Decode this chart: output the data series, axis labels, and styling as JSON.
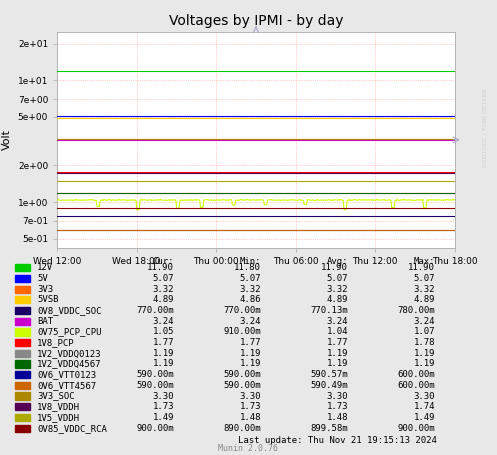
{
  "title": "Voltages by IPMI - by day",
  "ylabel": "Volt",
  "background_color": "#e8e8e8",
  "plot_bg_color": "#ffffff",
  "grid_color": "#ff9999",
  "watermark": "RRDTOOL / TOBI OETKER",
  "munin_version": "Munin 2.0.76",
  "last_update": "Last update: Thu Nov 21 19:15:13 2024",
  "xticklabels": [
    "Wed 12:00",
    "Wed 18:00",
    "Thu 00:00",
    "Thu 06:00",
    "Thu 12:00",
    "Thu 18:00"
  ],
  "ytick_vals": [
    0.5,
    0.7,
    1.0,
    2.0,
    5.0,
    7.0,
    10.0,
    20.0
  ],
  "ytick_labels": [
    "5e-01",
    "7e-01",
    "1e+00",
    "2e+00",
    "5e+00",
    "7e+00",
    "1e+01",
    "2e+01"
  ],
  "series": [
    {
      "name": "12V",
      "color": "#00cc00",
      "avg": 11.9,
      "min": 11.8,
      "max": 11.9,
      "cur": 11.9
    },
    {
      "name": "5V",
      "color": "#0000ff",
      "avg": 5.07,
      "min": 5.07,
      "max": 5.07,
      "cur": 5.07
    },
    {
      "name": "3V3",
      "color": "#ff6600",
      "avg": 3.32,
      "min": 3.32,
      "max": 3.32,
      "cur": 3.32
    },
    {
      "name": "5VSB",
      "color": "#ffcc00",
      "avg": 4.89,
      "min": 4.86,
      "max": 4.89,
      "cur": 4.89
    },
    {
      "name": "0V8_VDDC_SOC",
      "color": "#1a0066",
      "avg": 0.77013,
      "min": 0.77,
      "max": 0.78,
      "cur": 0.77
    },
    {
      "name": "BAT",
      "color": "#cc00cc",
      "avg": 3.24,
      "min": 3.24,
      "max": 3.24,
      "cur": 3.24
    },
    {
      "name": "0V75_PCP_CPU",
      "color": "#ccff00",
      "avg": 1.04,
      "min": 0.91,
      "max": 1.07,
      "cur": 1.05
    },
    {
      "name": "1V8_PCP",
      "color": "#ff0000",
      "avg": 1.77,
      "min": 1.77,
      "max": 1.78,
      "cur": 1.77
    },
    {
      "name": "1V2_VDDQ0123",
      "color": "#888888",
      "avg": 1.19,
      "min": 1.19,
      "max": 1.19,
      "cur": 1.19
    },
    {
      "name": "1V2_VDDQ4567",
      "color": "#006600",
      "avg": 1.19,
      "min": 1.19,
      "max": 1.19,
      "cur": 1.19
    },
    {
      "name": "0V6_VTT0123",
      "color": "#000099",
      "avg": 0.59057,
      "min": 0.59,
      "max": 0.6,
      "cur": 0.59
    },
    {
      "name": "0V6_VTT4567",
      "color": "#cc6600",
      "avg": 0.59049,
      "min": 0.59,
      "max": 0.6,
      "cur": 0.59
    },
    {
      "name": "3V3_SOC",
      "color": "#aa8800",
      "avg": 3.3,
      "min": 3.3,
      "max": 3.3,
      "cur": 3.3
    },
    {
      "name": "1V8_VDDH",
      "color": "#550055",
      "avg": 1.73,
      "min": 1.73,
      "max": 1.74,
      "cur": 1.73
    },
    {
      "name": "1V5_VDDH",
      "color": "#aaaa00",
      "avg": 1.48,
      "min": 1.48,
      "max": 1.49,
      "cur": 1.49
    },
    {
      "name": "0V85_VDDC_RCA",
      "color": "#880000",
      "avg": 0.89958,
      "min": 0.89,
      "max": 0.9,
      "cur": 0.9
    }
  ]
}
